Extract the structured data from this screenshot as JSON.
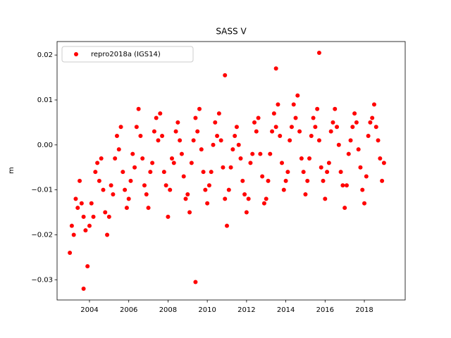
{
  "chart_data": {
    "type": "scatter",
    "title": "SASS V",
    "ylabel": "m",
    "series": [
      {
        "name": "repro2018a (IGS14)",
        "color": "#ff0000",
        "x": [
          2003.0,
          2003.1,
          2003.2,
          2003.3,
          2003.4,
          2003.5,
          2003.6,
          2003.7,
          2003.8,
          2003.9,
          2004.0,
          2004.1,
          2004.2,
          2004.3,
          2004.4,
          2004.5,
          2004.6,
          2004.7,
          2004.8,
          2004.9,
          2005.0,
          2005.1,
          2005.2,
          2005.3,
          2005.4,
          2005.5,
          2005.6,
          2005.7,
          2005.8,
          2005.9,
          2006.0,
          2006.1,
          2006.2,
          2006.3,
          2006.4,
          2006.5,
          2006.6,
          2006.7,
          2006.8,
          2006.9,
          2007.0,
          2007.1,
          2007.2,
          2007.3,
          2007.4,
          2007.5,
          2007.6,
          2007.7,
          2007.8,
          2007.9,
          2008.0,
          2008.1,
          2008.2,
          2008.3,
          2008.4,
          2008.5,
          2008.6,
          2008.7,
          2008.8,
          2008.9,
          2009.0,
          2009.1,
          2009.2,
          2009.3,
          2009.4,
          2009.5,
          2009.6,
          2009.7,
          2009.8,
          2009.9,
          2010.0,
          2010.1,
          2010.2,
          2010.3,
          2010.4,
          2010.5,
          2010.6,
          2010.7,
          2010.8,
          2010.9,
          2011.0,
          2011.1,
          2011.2,
          2011.3,
          2011.4,
          2011.5,
          2011.6,
          2011.7,
          2011.8,
          2011.9,
          2012.0,
          2012.1,
          2012.2,
          2012.3,
          2012.4,
          2012.5,
          2012.6,
          2012.7,
          2012.8,
          2012.9,
          2013.0,
          2013.1,
          2013.2,
          2013.3,
          2013.4,
          2013.5,
          2013.6,
          2013.7,
          2013.8,
          2013.9,
          2014.0,
          2014.1,
          2014.2,
          2014.3,
          2014.4,
          2014.5,
          2014.6,
          2014.7,
          2014.8,
          2014.9,
          2015.0,
          2015.1,
          2015.2,
          2015.3,
          2015.4,
          2015.5,
          2015.6,
          2015.7,
          2015.8,
          2015.9,
          2016.0,
          2016.1,
          2016.2,
          2016.3,
          2016.4,
          2016.5,
          2016.6,
          2016.7,
          2016.8,
          2016.9,
          2017.0,
          2017.1,
          2017.2,
          2017.3,
          2017.4,
          2017.5,
          2017.6,
          2017.7,
          2017.8,
          2017.9,
          2018.0,
          2018.1,
          2018.2,
          2018.3,
          2018.4,
          2018.5,
          2018.6,
          2018.7,
          2018.8,
          2018.9,
          2019.0,
          2003.7,
          2009.4,
          2015.7,
          2013.5,
          2010.9
        ],
        "values": [
          -0.024,
          -0.018,
          -0.02,
          -0.012,
          -0.014,
          -0.008,
          -0.013,
          -0.016,
          -0.019,
          -0.027,
          -0.018,
          -0.013,
          -0.016,
          -0.006,
          -0.004,
          -0.008,
          -0.003,
          -0.01,
          -0.015,
          -0.02,
          -0.016,
          -0.009,
          -0.011,
          -0.003,
          0.002,
          -0.001,
          0.004,
          -0.006,
          -0.01,
          -0.014,
          -0.012,
          -0.008,
          -0.002,
          -0.005,
          0.004,
          0.008,
          0.002,
          -0.003,
          -0.009,
          -0.011,
          -0.014,
          -0.006,
          -0.004,
          0.003,
          0.006,
          0.001,
          0.007,
          0.002,
          -0.006,
          -0.009,
          -0.016,
          -0.01,
          -0.003,
          -0.004,
          0.003,
          0.005,
          0.001,
          -0.002,
          -0.007,
          -0.012,
          -0.011,
          -0.015,
          -0.004,
          0.001,
          0.006,
          0.003,
          0.008,
          -0.001,
          -0.006,
          -0.01,
          -0.013,
          -0.009,
          -0.006,
          0.0,
          0.005,
          0.002,
          0.007,
          0.001,
          -0.005,
          -0.012,
          -0.018,
          -0.01,
          -0.005,
          -0.001,
          0.002,
          0.004,
          0.0,
          -0.003,
          -0.008,
          -0.011,
          -0.015,
          -0.012,
          -0.004,
          -0.002,
          0.005,
          0.003,
          0.006,
          -0.002,
          -0.007,
          -0.013,
          -0.012,
          -0.008,
          -0.002,
          0.003,
          0.007,
          0.004,
          0.009,
          0.002,
          -0.004,
          -0.01,
          -0.008,
          -0.006,
          0.001,
          0.004,
          0.009,
          0.006,
          0.011,
          0.003,
          -0.003,
          -0.006,
          -0.011,
          -0.008,
          -0.003,
          0.002,
          0.006,
          0.004,
          0.008,
          0.001,
          -0.005,
          -0.008,
          -0.012,
          -0.006,
          -0.004,
          0.003,
          0.005,
          0.008,
          0.004,
          0.0,
          -0.006,
          -0.009,
          -0.014,
          -0.009,
          -0.002,
          0.001,
          0.004,
          0.007,
          0.005,
          -0.001,
          -0.005,
          -0.01,
          -0.013,
          -0.007,
          0.002,
          0.005,
          0.006,
          0.009,
          0.004,
          0.001,
          -0.003,
          -0.008,
          -0.004,
          -0.032,
          -0.0305,
          0.0205,
          0.017,
          0.0155
        ]
      }
    ],
    "xlim": [
      2002.35,
      2020.08
    ],
    "xticks": [
      2004,
      2006,
      2008,
      2010,
      2012,
      2014,
      2016,
      2018
    ],
    "ylim": [
      -0.0345,
      0.023
    ],
    "yticks": [
      {
        "value": -0.03,
        "label": "−0.03"
      },
      {
        "value": -0.02,
        "label": "−0.02"
      },
      {
        "value": -0.01,
        "label": "−0.01"
      },
      {
        "value": 0,
        "label": "0.00"
      },
      0.01,
      0.02
    ],
    "grid": false,
    "legend": "upper left"
  }
}
